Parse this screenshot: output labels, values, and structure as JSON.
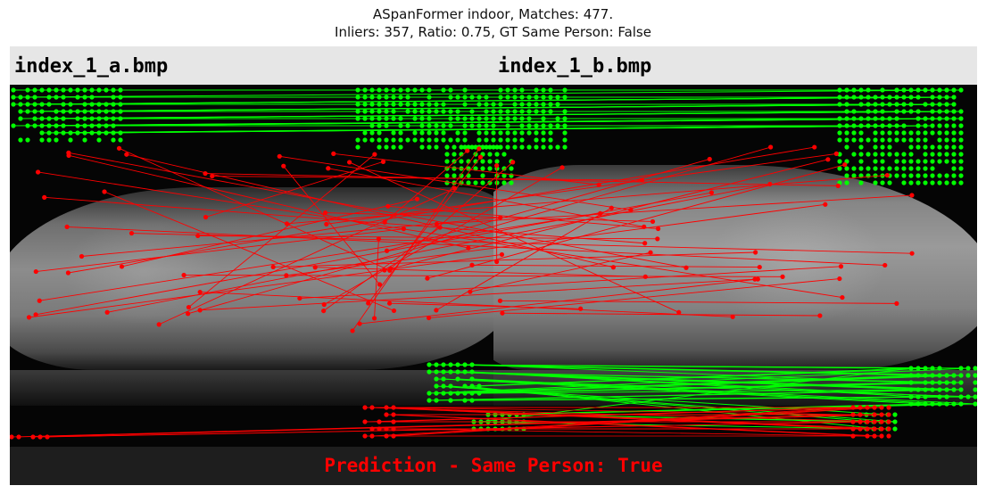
{
  "title": {
    "line1": "ASpanFormer indoor, Matches: 477.",
    "line2": "Inliers: 357, Ratio: 0.75, GT Same Person: False"
  },
  "images": {
    "left_filename": "index_1_a.bmp",
    "right_filename": "index_1_b.bmp"
  },
  "prediction": {
    "text": "Prediction - Same Person: True",
    "color": "#ff0000"
  },
  "colors": {
    "inlier": "#00ff00",
    "outlier": "#ff0000",
    "header_bg": "#e6e6e6",
    "footer_bg": "#1e1e1e"
  }
}
